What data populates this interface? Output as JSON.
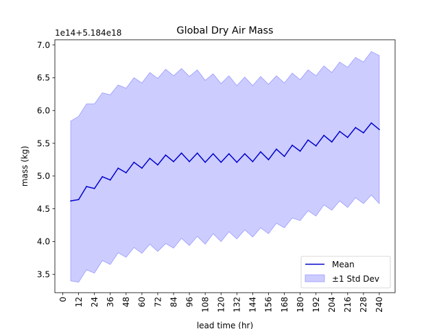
{
  "chart_data": {
    "type": "line",
    "title": "Global Dry Air Mass",
    "xlabel": "lead time (hr)",
    "ylabel": "mass (kg)",
    "offset_text": "1e14+5.184e18",
    "xlim": [
      -6,
      252
    ],
    "ylim": [
      3.22,
      7.08
    ],
    "x_ticks": [
      0,
      12,
      24,
      36,
      48,
      60,
      72,
      84,
      96,
      108,
      120,
      132,
      144,
      156,
      168,
      180,
      192,
      204,
      216,
      228,
      240
    ],
    "y_ticks": [
      3.5,
      4.0,
      4.5,
      5.0,
      5.5,
      6.0,
      6.5,
      7.0
    ],
    "y_tick_labels": [
      "3.5",
      "4.0",
      "4.5",
      "5.0",
      "5.5",
      "6.0",
      "6.5",
      "7.0"
    ],
    "x": [
      6,
      12,
      18,
      24,
      30,
      36,
      42,
      48,
      54,
      60,
      66,
      72,
      78,
      84,
      90,
      96,
      102,
      108,
      114,
      120,
      126,
      132,
      138,
      144,
      150,
      156,
      162,
      168,
      174,
      180,
      186,
      192,
      198,
      204,
      210,
      216,
      222,
      228,
      234,
      240
    ],
    "series": [
      {
        "name": "Mean",
        "color": "#0000cc",
        "values": [
          4.62,
          4.64,
          4.84,
          4.81,
          4.99,
          4.94,
          5.12,
          5.05,
          5.21,
          5.12,
          5.27,
          5.17,
          5.32,
          5.22,
          5.35,
          5.22,
          5.35,
          5.21,
          5.34,
          5.21,
          5.34,
          5.21,
          5.34,
          5.22,
          5.37,
          5.25,
          5.41,
          5.3,
          5.47,
          5.38,
          5.55,
          5.46,
          5.62,
          5.52,
          5.68,
          5.59,
          5.74,
          5.66,
          5.81,
          5.71
        ]
      }
    ],
    "band": {
      "name": "±1 Std Dev",
      "color": "#ccccff",
      "edge_color": "#9999ff",
      "upper": [
        5.84,
        5.91,
        6.1,
        6.1,
        6.27,
        6.24,
        6.39,
        6.34,
        6.5,
        6.42,
        6.58,
        6.49,
        6.63,
        6.53,
        6.64,
        6.52,
        6.62,
        6.46,
        6.56,
        6.41,
        6.53,
        6.38,
        6.51,
        6.38,
        6.52,
        6.4,
        6.53,
        6.42,
        6.57,
        6.47,
        6.62,
        6.53,
        6.68,
        6.58,
        6.74,
        6.66,
        6.81,
        6.74,
        6.9,
        6.84
      ],
      "lower": [
        3.4,
        3.38,
        3.57,
        3.52,
        3.71,
        3.65,
        3.83,
        3.76,
        3.91,
        3.82,
        3.96,
        3.85,
        3.97,
        3.9,
        4.05,
        3.94,
        4.08,
        3.96,
        4.12,
        4.0,
        4.15,
        4.04,
        4.18,
        4.07,
        4.21,
        4.12,
        4.28,
        4.21,
        4.36,
        4.32,
        4.47,
        4.39,
        4.56,
        4.48,
        4.62,
        4.52,
        4.67,
        4.58,
        4.71,
        4.58
      ]
    },
    "legend": {
      "position": "bottom-right",
      "entries": [
        "Mean",
        "±1 Std Dev"
      ]
    },
    "grid": false
  }
}
